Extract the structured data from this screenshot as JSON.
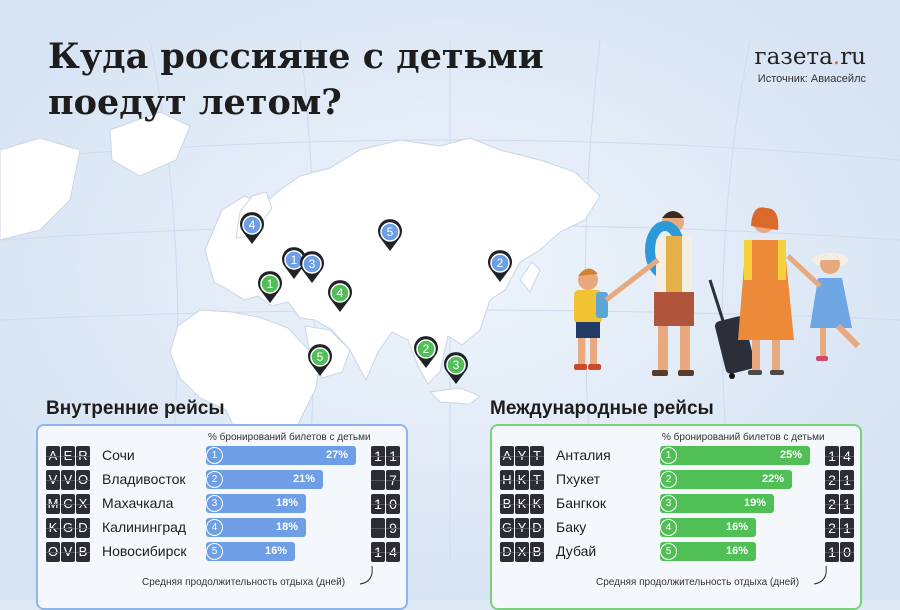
{
  "header": {
    "title_line1": "Куда россияне с детьми",
    "title_line2": "поедут летом?",
    "logo_main": "газета",
    "logo_dot": ".",
    "logo_suffix": "ru",
    "source": "Источник: Авиасейлс"
  },
  "colors": {
    "domestic": "#6d9ee6",
    "international": "#4fbf56",
    "board": "#2a2d33"
  },
  "chart_data": [
    {
      "type": "bar",
      "title": "Внутренние рейсы",
      "value_label": "% бронирований билетов с детьми",
      "days_label": "Средняя продолжительность отдыха (дней)",
      "xlim": [
        0,
        27
      ],
      "categories": [
        "Сочи",
        "Владивосток",
        "Махачкала",
        "Калининград",
        "Новосибирск"
      ],
      "codes": [
        "AER",
        "VVO",
        "MCX",
        "KGD",
        "OVB"
      ],
      "ranks": [
        "1",
        "2",
        "3",
        "4",
        "5"
      ],
      "values": [
        27,
        21,
        18,
        18,
        16
      ],
      "value_labels": [
        "27%",
        "21%",
        "18%",
        "18%",
        "16%"
      ],
      "days": [
        "11",
        "7",
        "10",
        "9",
        "14"
      ]
    },
    {
      "type": "bar",
      "title": "Международные рейсы",
      "value_label": "% бронирований билетов с детьми",
      "days_label": "Средняя продолжительность отдыха (дней)",
      "xlim": [
        0,
        25
      ],
      "categories": [
        "Анталия",
        "Пхукет",
        "Бангкок",
        "Баку",
        "Дубай"
      ],
      "codes": [
        "AYT",
        "HKT",
        "BKK",
        "GYD",
        "DXB"
      ],
      "ranks": [
        "1",
        "2",
        "3",
        "4",
        "5"
      ],
      "values": [
        25,
        22,
        19,
        16,
        16
      ],
      "value_labels": [
        "25%",
        "22%",
        "19%",
        "16%",
        "16%"
      ],
      "days": [
        "14",
        "21",
        "21",
        "21",
        "10"
      ]
    }
  ],
  "map_pins": [
    {
      "label": "4",
      "group": "domestic"
    },
    {
      "label": "1",
      "group": "domestic"
    },
    {
      "label": "3",
      "group": "domestic"
    },
    {
      "label": "5",
      "group": "domestic"
    },
    {
      "label": "2",
      "group": "domestic"
    },
    {
      "label": "1",
      "group": "international"
    },
    {
      "label": "4",
      "group": "international"
    },
    {
      "label": "5",
      "group": "international"
    },
    {
      "label": "2",
      "group": "international"
    },
    {
      "label": "3",
      "group": "international"
    }
  ]
}
